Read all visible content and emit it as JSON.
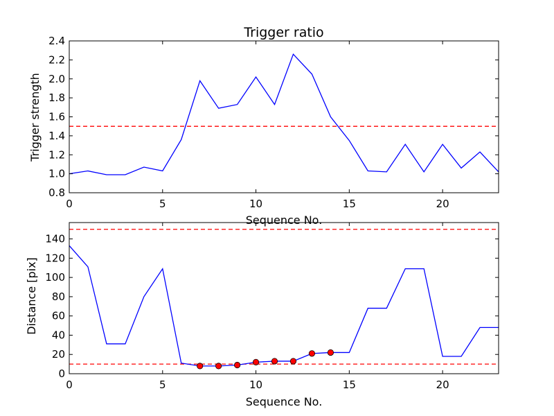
{
  "chart_data": [
    {
      "type": "line",
      "title": "Trigger ratio",
      "xlabel": "Sequence No.",
      "ylabel": "Trigger strength",
      "xlim": [
        0,
        23
      ],
      "ylim": [
        0.8,
        2.4
      ],
      "xticks": [
        0,
        5,
        10,
        15,
        20
      ],
      "xtick_labels": [
        "0",
        "5",
        "10",
        "15",
        "20"
      ],
      "yticks": [
        0.8,
        1.0,
        1.2,
        1.4,
        1.6,
        1.8,
        2.0,
        2.2,
        2.4
      ],
      "ytick_labels": [
        "0.8",
        "1.0",
        "1.2",
        "1.4",
        "1.6",
        "1.8",
        "2.0",
        "2.2",
        "2.4"
      ],
      "grid": false,
      "series": [
        {
          "color": "#0000ff",
          "style": "line",
          "x": [
            0,
            1,
            2,
            3,
            4,
            5,
            6,
            7,
            8,
            9,
            10,
            11,
            12,
            13,
            14,
            15,
            16,
            17,
            18,
            19,
            20,
            21,
            22,
            23
          ],
          "y": [
            1.0,
            1.03,
            0.99,
            0.99,
            1.07,
            1.03,
            1.36,
            1.98,
            1.69,
            1.73,
            2.02,
            1.73,
            2.26,
            2.05,
            1.6,
            1.35,
            1.03,
            1.02,
            1.31,
            1.02,
            1.31,
            1.06,
            1.23,
            1.02
          ]
        }
      ],
      "reference_lines": [
        {
          "y": 1.5,
          "color": "#ff0000",
          "style": "dashed"
        }
      ]
    },
    {
      "type": "line",
      "title": "",
      "xlabel": "Sequence No.",
      "ylabel": "Distance [pix]",
      "xlim": [
        0,
        23
      ],
      "ylim": [
        0,
        157
      ],
      "xticks": [
        0,
        5,
        10,
        15,
        20
      ],
      "xtick_labels": [
        "0",
        "5",
        "10",
        "15",
        "20"
      ],
      "yticks": [
        0,
        20,
        40,
        60,
        80,
        100,
        120,
        140
      ],
      "ytick_labels": [
        "0",
        "20",
        "40",
        "60",
        "80",
        "100",
        "120",
        "140"
      ],
      "grid": false,
      "series": [
        {
          "color": "#0000ff",
          "style": "line",
          "x": [
            0,
            1,
            2,
            3,
            4,
            5,
            6,
            7,
            8,
            9,
            10,
            11,
            12,
            13,
            14,
            15,
            16,
            17,
            18,
            19,
            20,
            21,
            22,
            23
          ],
          "y": [
            133,
            111,
            31,
            31,
            80,
            109,
            11,
            8,
            8,
            9,
            12,
            13,
            13,
            21,
            22,
            22,
            68,
            68,
            109,
            109,
            18,
            18,
            48,
            48
          ]
        },
        {
          "color": "#ff0000",
          "style": "markers",
          "x": [
            7,
            8,
            9,
            10,
            11,
            12,
            13,
            14
          ],
          "y": [
            8,
            8,
            9,
            12,
            13,
            13,
            21,
            22
          ]
        }
      ],
      "reference_lines": [
        {
          "y": 150,
          "color": "#ff0000",
          "style": "dashed"
        },
        {
          "y": 10,
          "color": "#ff0000",
          "style": "dashed"
        }
      ]
    }
  ]
}
